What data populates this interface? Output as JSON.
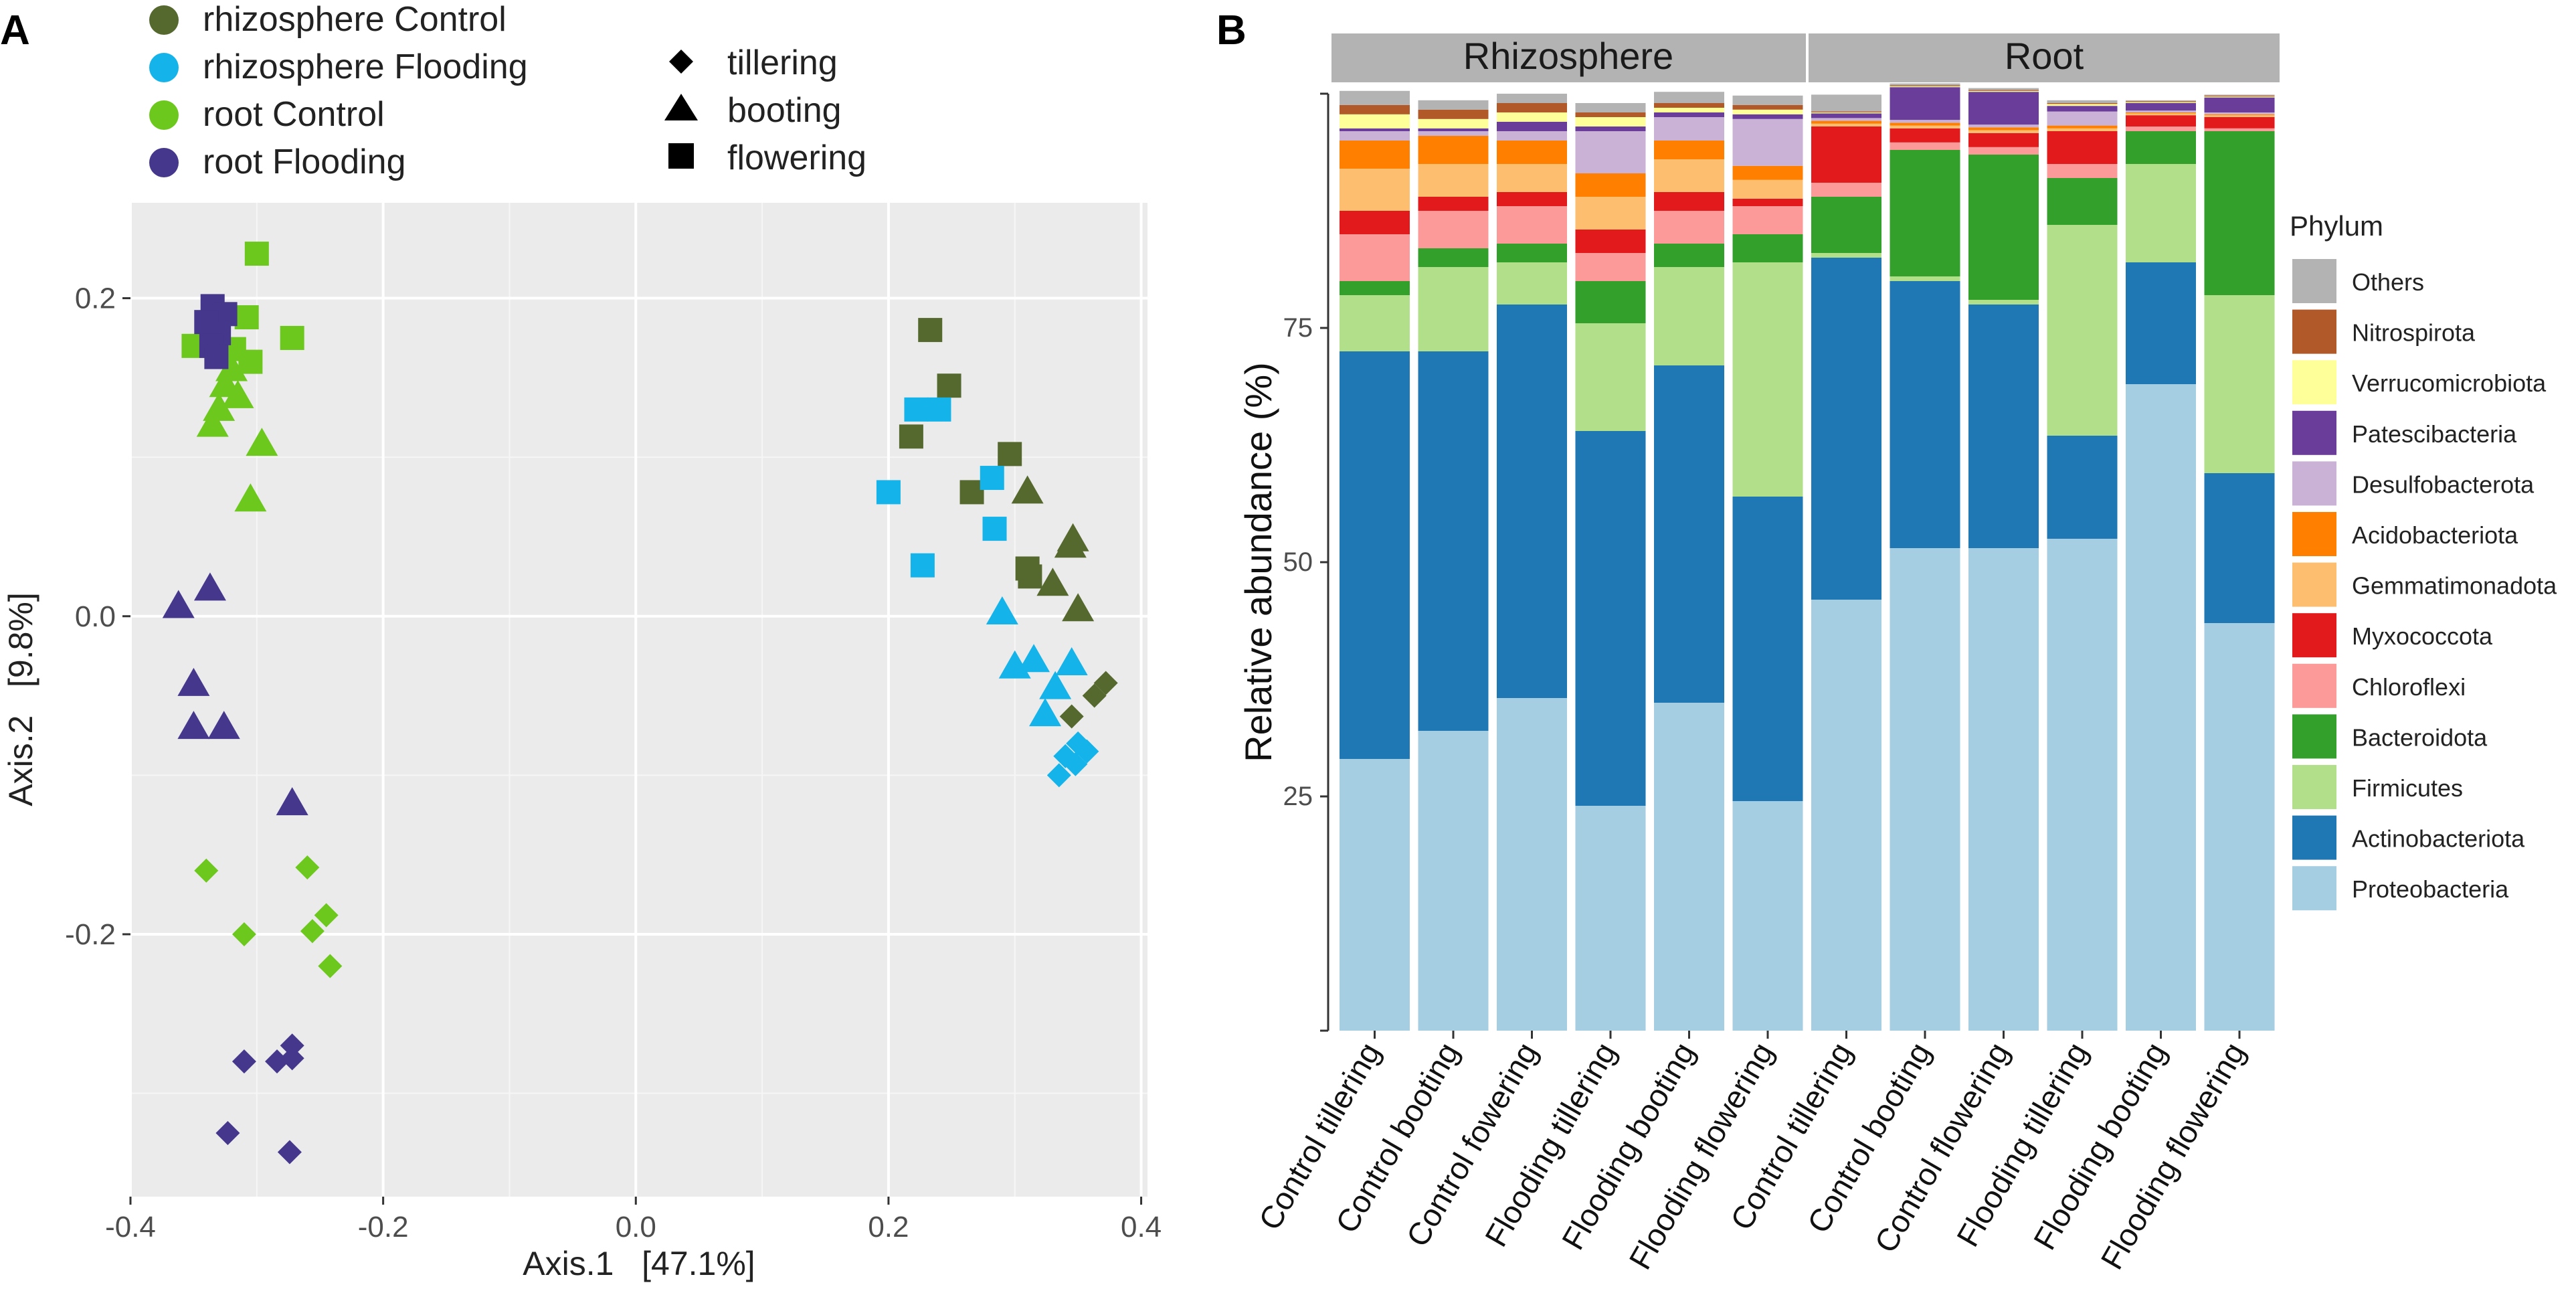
{
  "figure": {
    "panel_a_label": "A",
    "panel_b_label": "B"
  },
  "colors": {
    "rhizosphere_control": "#55692f",
    "rhizosphere_flooding": "#14b4ea",
    "root_control": "#6cc81c",
    "root_flooding": "#45378b",
    "panel_bg": "#ebebeb",
    "strip_bg": "#b3b3b3"
  },
  "chart_data": [
    {
      "panel": "A",
      "type": "scatter",
      "title": "",
      "xlabel": "Axis.1   [47.1%]",
      "ylabel": "Axis.2   [9.8%]",
      "xlim": [
        -0.4,
        0.405
      ],
      "ylim": [
        -0.365,
        0.26
      ],
      "xticks": [
        -0.4,
        -0.2,
        0.0,
        0.2,
        0.4
      ],
      "xtick_labels": [
        "-0.4",
        "-0.2",
        "0.0",
        "0.2",
        "0.4"
      ],
      "yticks": [
        -0.2,
        0.0,
        0.2
      ],
      "ytick_labels": [
        "-0.2",
        "0.0",
        "0.2"
      ],
      "color_legend": [
        {
          "key": "rhizosphere_control",
          "label": "rhizosphere Control"
        },
        {
          "key": "rhizosphere_flooding",
          "label": "rhizosphere Flooding"
        },
        {
          "key": "root_control",
          "label": "root Control"
        },
        {
          "key": "root_flooding",
          "label": "root Flooding"
        }
      ],
      "shape_legend": [
        {
          "shape": "diamond",
          "label": "tillering"
        },
        {
          "shape": "triangle",
          "label": "booting"
        },
        {
          "shape": "square",
          "label": "flowering"
        }
      ],
      "series": [
        {
          "name": "rhizosphere Control",
          "key": "rhizosphere_control",
          "points": [
            {
              "x": 0.233,
              "y": 0.18,
              "shape": "square"
            },
            {
              "x": 0.248,
              "y": 0.145,
              "shape": "square"
            },
            {
              "x": 0.218,
              "y": 0.113,
              "shape": "square"
            },
            {
              "x": 0.296,
              "y": 0.102,
              "shape": "square"
            },
            {
              "x": 0.266,
              "y": 0.078,
              "shape": "square"
            },
            {
              "x": 0.31,
              "y": 0.03,
              "shape": "square"
            },
            {
              "x": 0.312,
              "y": 0.025,
              "shape": "square"
            },
            {
              "x": 0.31,
              "y": 0.078,
              "shape": "triangle"
            },
            {
              "x": 0.346,
              "y": 0.048,
              "shape": "triangle"
            },
            {
              "x": 0.344,
              "y": 0.044,
              "shape": "triangle"
            },
            {
              "x": 0.33,
              "y": 0.02,
              "shape": "triangle"
            },
            {
              "x": 0.35,
              "y": 0.004,
              "shape": "triangle"
            },
            {
              "x": 0.372,
              "y": -0.042,
              "shape": "diamond"
            },
            {
              "x": 0.363,
              "y": -0.05,
              "shape": "diamond"
            },
            {
              "x": 0.345,
              "y": -0.063,
              "shape": "diamond"
            }
          ]
        },
        {
          "name": "rhizosphere Flooding",
          "key": "rhizosphere_flooding",
          "points": [
            {
              "x": 0.222,
              "y": 0.13,
              "shape": "square"
            },
            {
              "x": 0.24,
              "y": 0.13,
              "shape": "square"
            },
            {
              "x": 0.2,
              "y": 0.078,
              "shape": "square"
            },
            {
              "x": 0.282,
              "y": 0.087,
              "shape": "square"
            },
            {
              "x": 0.284,
              "y": 0.055,
              "shape": "square"
            },
            {
              "x": 0.227,
              "y": 0.032,
              "shape": "square"
            },
            {
              "x": 0.29,
              "y": 0.002,
              "shape": "triangle"
            },
            {
              "x": 0.3,
              "y": -0.032,
              "shape": "triangle"
            },
            {
              "x": 0.315,
              "y": -0.028,
              "shape": "triangle"
            },
            {
              "x": 0.345,
              "y": -0.03,
              "shape": "triangle"
            },
            {
              "x": 0.332,
              "y": -0.045,
              "shape": "triangle"
            },
            {
              "x": 0.324,
              "y": -0.062,
              "shape": "triangle"
            },
            {
              "x": 0.35,
              "y": -0.08,
              "shape": "diamond"
            },
            {
              "x": 0.357,
              "y": -0.085,
              "shape": "diamond"
            },
            {
              "x": 0.34,
              "y": -0.088,
              "shape": "diamond"
            },
            {
              "x": 0.348,
              "y": -0.093,
              "shape": "diamond"
            },
            {
              "x": 0.335,
              "y": -0.1,
              "shape": "diamond"
            }
          ]
        },
        {
          "name": "root Control",
          "key": "root_control",
          "points": [
            {
              "x": -0.3,
              "y": 0.228,
              "shape": "square"
            },
            {
              "x": -0.272,
              "y": 0.175,
              "shape": "square"
            },
            {
              "x": -0.308,
              "y": 0.188,
              "shape": "square"
            },
            {
              "x": -0.35,
              "y": 0.17,
              "shape": "square"
            },
            {
              "x": -0.318,
              "y": 0.168,
              "shape": "square"
            },
            {
              "x": -0.305,
              "y": 0.16,
              "shape": "square"
            },
            {
              "x": -0.32,
              "y": 0.155,
              "shape": "triangle"
            },
            {
              "x": -0.325,
              "y": 0.145,
              "shape": "triangle"
            },
            {
              "x": -0.315,
              "y": 0.138,
              "shape": "triangle"
            },
            {
              "x": -0.33,
              "y": 0.13,
              "shape": "triangle"
            },
            {
              "x": -0.335,
              "y": 0.12,
              "shape": "triangle"
            },
            {
              "x": -0.296,
              "y": 0.108,
              "shape": "triangle"
            },
            {
              "x": -0.305,
              "y": 0.073,
              "shape": "triangle"
            },
            {
              "x": -0.34,
              "y": -0.16,
              "shape": "diamond"
            },
            {
              "x": -0.26,
              "y": -0.158,
              "shape": "diamond"
            },
            {
              "x": -0.245,
              "y": -0.188,
              "shape": "diamond"
            },
            {
              "x": -0.31,
              "y": -0.2,
              "shape": "diamond"
            },
            {
              "x": -0.256,
              "y": -0.198,
              "shape": "diamond"
            },
            {
              "x": -0.242,
              "y": -0.22,
              "shape": "diamond"
            }
          ]
        },
        {
          "name": "root Flooding",
          "key": "root_flooding",
          "points": [
            {
              "x": -0.335,
              "y": 0.195,
              "shape": "square"
            },
            {
              "x": -0.325,
              "y": 0.19,
              "shape": "square"
            },
            {
              "x": -0.34,
              "y": 0.185,
              "shape": "square"
            },
            {
              "x": -0.33,
              "y": 0.178,
              "shape": "square"
            },
            {
              "x": -0.336,
              "y": 0.17,
              "shape": "square"
            },
            {
              "x": -0.332,
              "y": 0.163,
              "shape": "square"
            },
            {
              "x": -0.337,
              "y": 0.017,
              "shape": "triangle"
            },
            {
              "x": -0.362,
              "y": 0.006,
              "shape": "triangle"
            },
            {
              "x": -0.35,
              "y": -0.043,
              "shape": "triangle"
            },
            {
              "x": -0.35,
              "y": -0.07,
              "shape": "triangle"
            },
            {
              "x": -0.326,
              "y": -0.07,
              "shape": "triangle"
            },
            {
              "x": -0.272,
              "y": -0.118,
              "shape": "triangle"
            },
            {
              "x": -0.31,
              "y": -0.28,
              "shape": "diamond"
            },
            {
              "x": -0.284,
              "y": -0.28,
              "shape": "diamond"
            },
            {
              "x": -0.272,
              "y": -0.27,
              "shape": "diamond"
            },
            {
              "x": -0.272,
              "y": -0.278,
              "shape": "diamond"
            },
            {
              "x": -0.323,
              "y": -0.325,
              "shape": "diamond"
            },
            {
              "x": -0.274,
              "y": -0.337,
              "shape": "diamond"
            }
          ]
        }
      ]
    },
    {
      "panel": "B",
      "type": "bar",
      "stacked": true,
      "title": "",
      "xlabel": "",
      "ylabel": "Relative abundance (%)",
      "ylim": [
        0,
        100
      ],
      "yticks": [
        25,
        50,
        75
      ],
      "ytick_labels": [
        "25",
        "50",
        "75"
      ],
      "facets": [
        {
          "label": "Rhizosphere",
          "categories": [
            "Control tillering",
            "Control booting",
            "Control fowering",
            "Flooding tillering",
            "Flooding booting",
            "Flooding flowering"
          ]
        },
        {
          "label": "Root",
          "categories": [
            "Control tillering",
            "Control booting",
            "Control flowering",
            "Flooding tillering",
            "Flooding booting",
            "Flooding flowering"
          ]
        }
      ],
      "legend_title": "Phylum",
      "legend": [
        "Others",
        "Nitrospirota",
        "Verrucomicrobiota",
        "Patescibacteria",
        "Desulfobacterota",
        "Acidobacteriota",
        "Gemmatimonadota",
        "Myxococcota",
        "Chloroflexi",
        "Bacteroidota",
        "Firmicutes",
        "Actinobacteriota",
        "Proteobacteria"
      ],
      "series": [
        {
          "name": "Proteobacteria",
          "color": "#a6cee3",
          "values": [
            29,
            32,
            35.5,
            24,
            35,
            24.5,
            46,
            51.5,
            51.5,
            52.5,
            69,
            43.5
          ]
        },
        {
          "name": "Actinobacteriota",
          "color": "#1f78b4",
          "values": [
            43.5,
            40.5,
            42,
            40,
            36,
            32.5,
            36.5,
            28.5,
            26,
            11,
            13,
            16
          ]
        },
        {
          "name": "Firmicutes",
          "color": "#b2df8a",
          "values": [
            6,
            9,
            4.5,
            11.5,
            10.5,
            25,
            0.5,
            0.5,
            0.5,
            22.5,
            10.5,
            19
          ]
        },
        {
          "name": "Bacteroidota",
          "color": "#33a02c",
          "values": [
            1.5,
            2,
            2,
            4.5,
            2.5,
            3,
            6,
            13.5,
            15.5,
            5,
            3.5,
            17.5
          ]
        },
        {
          "name": "Chloroflexi",
          "color": "#fb9a99",
          "values": [
            5,
            4,
            4,
            3,
            3.5,
            3,
            1.5,
            0.8,
            0.8,
            1.5,
            0.5,
            0.3
          ]
        },
        {
          "name": "Myxococcota",
          "color": "#e31a1c",
          "values": [
            2.5,
            1.5,
            1.5,
            2.5,
            2,
            0.8,
            6,
            1.5,
            1.5,
            3.5,
            1.2,
            1.2
          ]
        },
        {
          "name": "Gemmatimonadota",
          "color": "#fdbf6f",
          "values": [
            4.5,
            3.5,
            3,
            3.5,
            3.5,
            2,
            0.3,
            0.3,
            0.3,
            0.3,
            0.2,
            0.2
          ]
        },
        {
          "name": "Acidobacteriota",
          "color": "#ff7f00",
          "values": [
            3,
            3,
            2.5,
            2.5,
            2,
            1.5,
            0.3,
            0.3,
            0.3,
            0.3,
            0.1,
            0.1
          ]
        },
        {
          "name": "Desulfobacterota",
          "color": "#cab2d6",
          "values": [
            1,
            0.5,
            1,
            4.5,
            2.5,
            5,
            0.3,
            0.3,
            0.3,
            1.5,
            0.2,
            0.2
          ]
        },
        {
          "name": "Patescibacteria",
          "color": "#6a3d9a",
          "values": [
            0.3,
            0.3,
            1,
            0.5,
            0.5,
            0.5,
            0.5,
            3.5,
            3.5,
            0.6,
            0.8,
            1.6
          ]
        },
        {
          "name": "Verrucomicrobiota",
          "color": "#ffff99",
          "values": [
            1.5,
            1,
            1,
            1,
            0.5,
            0.5,
            0.1,
            0.1,
            0.1,
            0.2,
            0.1,
            0.1
          ]
        },
        {
          "name": "Nitrospirota",
          "color": "#b15928",
          "values": [
            1,
            1,
            1,
            0.5,
            0.5,
            0.5,
            0.1,
            0.1,
            0.1,
            0.1,
            0.1,
            0.1
          ]
        },
        {
          "name": "Others",
          "color": "#b3b3b3",
          "values": [
            1.5,
            1,
            1,
            1,
            1.2,
            1,
            1.8,
            0.2,
            0.2,
            0.3,
            0.1,
            0.1
          ]
        }
      ]
    }
  ]
}
